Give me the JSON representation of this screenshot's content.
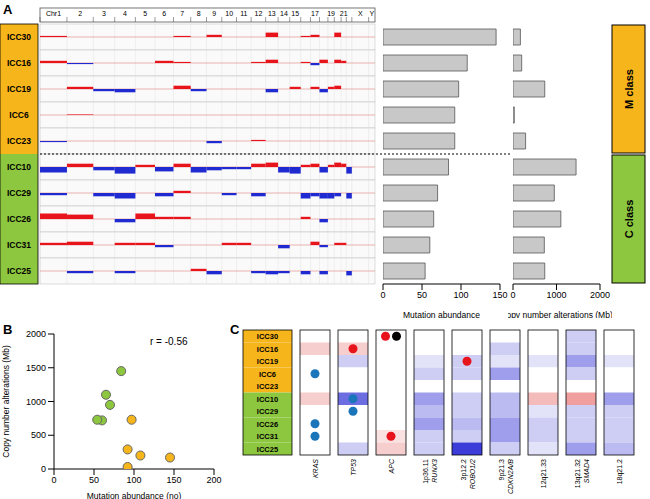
{
  "chart_data": [
    {
      "type": "copy_number_profile",
      "title": "A",
      "samples": [
        "ICC30",
        "ICC16",
        "ICC19",
        "ICC6",
        "ICC23",
        "ICC10",
        "ICC29",
        "ICC26",
        "ICC31",
        "ICC25"
      ],
      "classes": [
        {
          "name": "M class",
          "color": "#f7b51c",
          "samples": [
            "ICC30",
            "ICC16",
            "ICC19",
            "ICC6",
            "ICC23"
          ]
        },
        {
          "name": "C class",
          "color": "#8dc63f",
          "samples": [
            "ICC10",
            "ICC29",
            "ICC26",
            "ICC31",
            "ICC25"
          ]
        }
      ],
      "chromosomes": [
        "Chr1",
        "2",
        "3",
        "4",
        "5",
        "6",
        "7",
        "8",
        "9",
        "10",
        "11",
        "12",
        "13",
        "14",
        "15",
        null,
        "17",
        null,
        "19",
        null,
        "21",
        null,
        "X",
        "Y"
      ],
      "chromosome_sizes": [
        249,
        243,
        198,
        191,
        181,
        171,
        159,
        146,
        141,
        136,
        135,
        134,
        115,
        107,
        102,
        90,
        83,
        78,
        59,
        63,
        48,
        51,
        155,
        59
      ],
      "cn_range": [
        -1,
        1
      ],
      "profiles": [
        [
          0.1,
          0,
          0,
          0,
          0,
          0,
          0.1,
          0,
          0.2,
          0,
          0,
          0,
          0.4,
          0,
          0,
          0.1,
          0.2,
          0,
          0,
          0.4,
          0,
          0,
          0,
          0
        ],
        [
          0.2,
          -0.1,
          0,
          0,
          0,
          0.2,
          0.1,
          0,
          0,
          0,
          0,
          0.1,
          0.3,
          0,
          0,
          0.1,
          -0.2,
          0.3,
          0,
          0.3,
          0.2,
          0,
          0,
          0
        ],
        [
          0,
          0.2,
          -0.2,
          -0.3,
          0,
          0,
          0.3,
          -0.2,
          0,
          0,
          0,
          0,
          -0.3,
          0,
          0.2,
          0,
          0.2,
          -0.3,
          0.2,
          0.3,
          0,
          0,
          0,
          0
        ],
        [
          0,
          0.05,
          0,
          0,
          0,
          0,
          0,
          0,
          0,
          0,
          0,
          0,
          0,
          0,
          0,
          0,
          0,
          0,
          0,
          0,
          0,
          0,
          0,
          0
        ],
        [
          -0.1,
          0,
          0,
          0,
          0,
          0,
          0,
          0,
          -0.2,
          0,
          0,
          0.1,
          0,
          0,
          0,
          0,
          0,
          0,
          0,
          0,
          0,
          0,
          0,
          0
        ],
        [
          -0.5,
          0.3,
          -0.3,
          -0.6,
          0.2,
          -0.4,
          0.3,
          -0.5,
          -0.3,
          -0.2,
          -0.2,
          0.3,
          0.4,
          -0.5,
          -0.6,
          0.2,
          0.3,
          -0.5,
          0.2,
          0.4,
          0.3,
          -0.6,
          0,
          0
        ],
        [
          -0.2,
          0,
          -0.3,
          -0.5,
          0,
          -0.3,
          0.2,
          0,
          0,
          -0.2,
          0,
          -0.3,
          0,
          0,
          0,
          -0.5,
          -0.3,
          -0.5,
          -0.5,
          -0.3,
          0,
          -0.5,
          0,
          0
        ],
        [
          0.5,
          0.4,
          0,
          -0.3,
          0.5,
          0.2,
          0.2,
          0,
          0,
          0,
          0,
          0,
          0,
          0,
          0,
          0.2,
          0,
          -0.3,
          0,
          0,
          0,
          0,
          0,
          0
        ],
        [
          0.2,
          0.3,
          0,
          0.2,
          0.2,
          -0.2,
          0,
          0,
          0,
          0.2,
          0.2,
          0,
          0,
          -0.3,
          0,
          0,
          0.3,
          -0.2,
          0,
          0.2,
          0.2,
          0,
          0,
          0
        ],
        [
          0,
          -0.2,
          0,
          -0.2,
          0,
          0,
          0,
          0.2,
          -0.3,
          0,
          0,
          -0.2,
          -0.3,
          -0.2,
          0,
          -0.3,
          0,
          -0.3,
          0,
          0,
          0,
          -0.4,
          0,
          0
        ]
      ]
    },
    {
      "type": "bar",
      "orientation": "horizontal",
      "tick_labels": "x",
      "categories": [
        "ICC30",
        "ICC16",
        "ICC19",
        "ICC6",
        "ICC23",
        "ICC10",
        "ICC29",
        "ICC26",
        "ICC31",
        "ICC25"
      ],
      "values": [
        145,
        108,
        97,
        92,
        92,
        84,
        70,
        65,
        60,
        54
      ],
      "color": "#c8c8c8",
      "xlim": [
        0,
        150
      ],
      "xticks": [
        0,
        50,
        100,
        150
      ],
      "x_label": "Mutation abundance"
    },
    {
      "type": "bar",
      "orientation": "horizontal",
      "tick_labels": "x",
      "categories": [
        "ICC30",
        "ICC16",
        "ICC19",
        "ICC6",
        "ICC23",
        "ICC10",
        "ICC29",
        "ICC26",
        "ICC31",
        "ICC25"
      ],
      "values": [
        170,
        200,
        730,
        30,
        290,
        1450,
        950,
        1100,
        720,
        730
      ],
      "color": "#c8c8c8",
      "xlim": [
        0,
        2000
      ],
      "xticks": [
        0,
        1000,
        2000
      ],
      "x_label": "Copy number alterations (Mb)"
    },
    {
      "type": "scatter",
      "title": "B",
      "annotation": "r = -0.56",
      "x_label": "Mutation abundance (no)",
      "y_label": "Copy number alterations (Mb)",
      "xlim": [
        0,
        200
      ],
      "xticks": [
        0,
        50,
        100,
        150,
        200
      ],
      "ylim": [
        0,
        2000
      ],
      "yticks": [
        0,
        500,
        1000,
        1500,
        2000
      ],
      "series": [
        {
          "name": "M class",
          "color": "#f7b51c",
          "x": [
            145,
            108,
            97,
            92,
            92
          ],
          "values": [
            170,
            200,
            730,
            30,
            290
          ]
        },
        {
          "name": "C class",
          "color": "#8dc63f",
          "x": [
            84,
            70,
            65,
            60,
            54
          ],
          "values": [
            1450,
            950,
            1100,
            720,
            730
          ]
        }
      ]
    },
    {
      "type": "heatmap",
      "title": "C",
      "samples": [
        "ICC30",
        "ICC16",
        "ICC19",
        "ICC6",
        "ICC23",
        "ICC10",
        "ICC29",
        "ICC26",
        "ICC31",
        "ICC25"
      ],
      "cn_range": [
        -2,
        2
      ],
      "columns": [
        {
          "locus": null,
          "gene": "KRAS",
          "cells": [
            0,
            0.5,
            0,
            0,
            0,
            0.5,
            0,
            0,
            0,
            0
          ],
          "mutations": [
            null,
            null,
            null,
            [
              "#1a75bb"
            ],
            null,
            null,
            null,
            [
              "#1a75bb"
            ],
            [
              "#1a75bb"
            ],
            null
          ]
        },
        {
          "locus": null,
          "gene": "TP53",
          "cells": [
            0,
            0.5,
            -0.5,
            0,
            0,
            -1.5,
            0,
            0,
            0,
            -0.5
          ],
          "mutations": [
            null,
            [
              "#e8141c"
            ],
            null,
            null,
            null,
            [
              "#1a75bb"
            ],
            [
              "#1a75bb"
            ],
            null,
            null,
            null
          ]
        },
        {
          "locus": null,
          "gene": "APC",
          "cells": [
            0,
            0,
            0,
            0,
            0,
            0,
            0,
            0,
            0.3,
            0.5
          ],
          "mutations": [
            [
              "#e8141c",
              "#000000"
            ],
            null,
            null,
            null,
            null,
            null,
            null,
            null,
            [
              "#e8141c"
            ],
            null
          ]
        },
        {
          "locus": "1p36.11",
          "gene": "RUNX3",
          "cells": [
            0,
            0,
            -0.3,
            -0.5,
            0,
            -1,
            -0.7,
            -1,
            -0.5,
            -0.5
          ],
          "mutations": [
            null,
            null,
            null,
            null,
            null,
            null,
            null,
            null,
            null,
            null
          ]
        },
        {
          "locus": "3p12.2",
          "gene": "ROBO1/2",
          "cells": [
            0,
            0,
            -0.5,
            -0.5,
            0,
            -0.5,
            -0.5,
            -0.7,
            -0.5,
            -2
          ],
          "mutations": [
            null,
            null,
            [
              "#e8141c"
            ],
            null,
            null,
            null,
            null,
            null,
            null,
            null
          ]
        },
        {
          "locus": "9p21.3",
          "gene": "CDKN2A/B",
          "cells": [
            0,
            -0.5,
            -0.3,
            -1,
            0,
            -0.7,
            -0.7,
            -1,
            -1,
            -0.5
          ],
          "mutations": [
            null,
            null,
            null,
            null,
            null,
            null,
            null,
            null,
            null,
            null
          ]
        },
        {
          "locus": "12q21.33",
          "gene": null,
          "cells": [
            0,
            0,
            -0.3,
            0,
            0,
            0.7,
            -0.3,
            -0.5,
            -0.5,
            -0.3
          ],
          "mutations": [
            null,
            null,
            null,
            null,
            null,
            null,
            null,
            null,
            null,
            null
          ]
        },
        {
          "locus": "13q21.32",
          "gene": "SMAD4",
          "cells": [
            -0.5,
            -0.5,
            -1,
            -0.5,
            0,
            1,
            -0.5,
            -0.5,
            -0.5,
            -1
          ],
          "mutations": [
            null,
            null,
            null,
            null,
            null,
            null,
            null,
            null,
            null,
            null
          ]
        },
        {
          "locus": "18q21.2",
          "gene": null,
          "cells": [
            0,
            0,
            -0.3,
            0,
            0,
            -1,
            -0.5,
            -0.5,
            -0.5,
            -0.7
          ],
          "mutations": [
            null,
            null,
            null,
            null,
            null,
            null,
            null,
            null,
            null,
            null
          ]
        }
      ]
    }
  ]
}
